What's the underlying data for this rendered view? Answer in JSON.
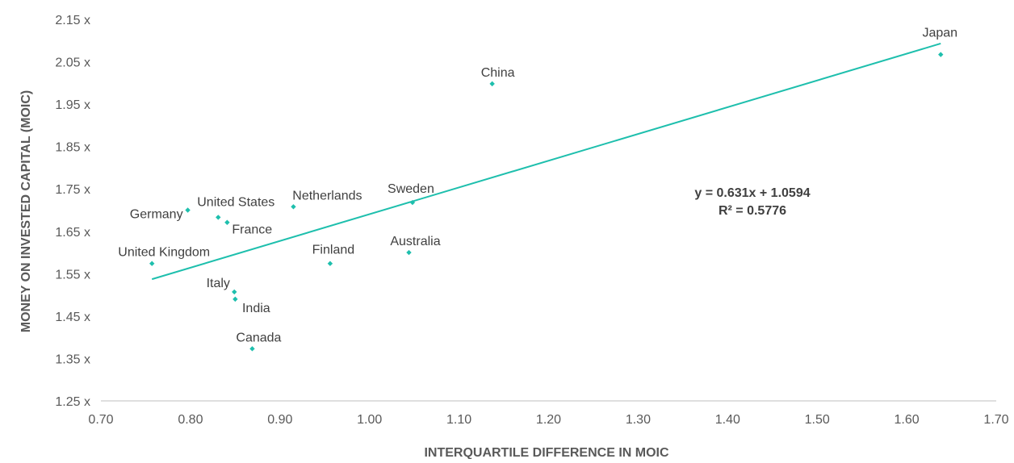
{
  "chart_data": {
    "type": "scatter",
    "xlabel": "INTERQUARTILE DIFFERENCE IN MOIC",
    "ylabel": "MONEY ON INVESTED CAPITAL (MOIC)",
    "xlim": [
      0.7,
      1.7
    ],
    "ylim": [
      1.25,
      2.15
    ],
    "x_ticks": [
      "0.70",
      "0.80",
      "0.90",
      "1.00",
      "1.10",
      "1.20",
      "1.30",
      "1.40",
      "1.50",
      "1.60",
      "1.70"
    ],
    "x_tick_values": [
      0.7,
      0.8,
      0.9,
      1.0,
      1.1,
      1.2,
      1.3,
      1.4,
      1.5,
      1.6,
      1.7
    ],
    "y_ticks": [
      "1.25 x",
      "1.35 x",
      "1.45 x",
      "1.55 x",
      "1.65 x",
      "1.75 x",
      "1.85 x",
      "1.95 x",
      "2.05 x",
      "2.15 x"
    ],
    "y_tick_values": [
      1.25,
      1.35,
      1.45,
      1.55,
      1.65,
      1.75,
      1.85,
      1.95,
      2.05,
      2.15
    ],
    "grid": false,
    "marker_color": "#1ebfad",
    "trendline_color": "#1ebfad",
    "points": [
      {
        "label": "Japan",
        "x": 1.638,
        "y": 2.067
      },
      {
        "label": "China",
        "x": 1.137,
        "y": 1.998
      },
      {
        "label": "Sweden",
        "x": 1.048,
        "y": 1.718
      },
      {
        "label": "Netherlands",
        "x": 0.915,
        "y": 1.708
      },
      {
        "label": "Germany",
        "x": 0.797,
        "y": 1.7
      },
      {
        "label": "United States",
        "x": 0.831,
        "y": 1.683
      },
      {
        "label": "France",
        "x": 0.841,
        "y": 1.671
      },
      {
        "label": "Australia",
        "x": 1.044,
        "y": 1.6
      },
      {
        "label": "United Kingdom",
        "x": 0.757,
        "y": 1.574
      },
      {
        "label": "Finland",
        "x": 0.956,
        "y": 1.574
      },
      {
        "label": "Italy",
        "x": 0.849,
        "y": 1.507
      },
      {
        "label": "India",
        "x": 0.85,
        "y": 1.49
      },
      {
        "label": "Canada",
        "x": 0.869,
        "y": 1.373
      }
    ],
    "trendline": {
      "x_start": 0.757,
      "x_end": 1.638,
      "slope": 0.631,
      "intercept": 1.0594,
      "equation_text": "y = 0.631x + 1.0594",
      "r2_text": "R² = 0.5776"
    }
  }
}
